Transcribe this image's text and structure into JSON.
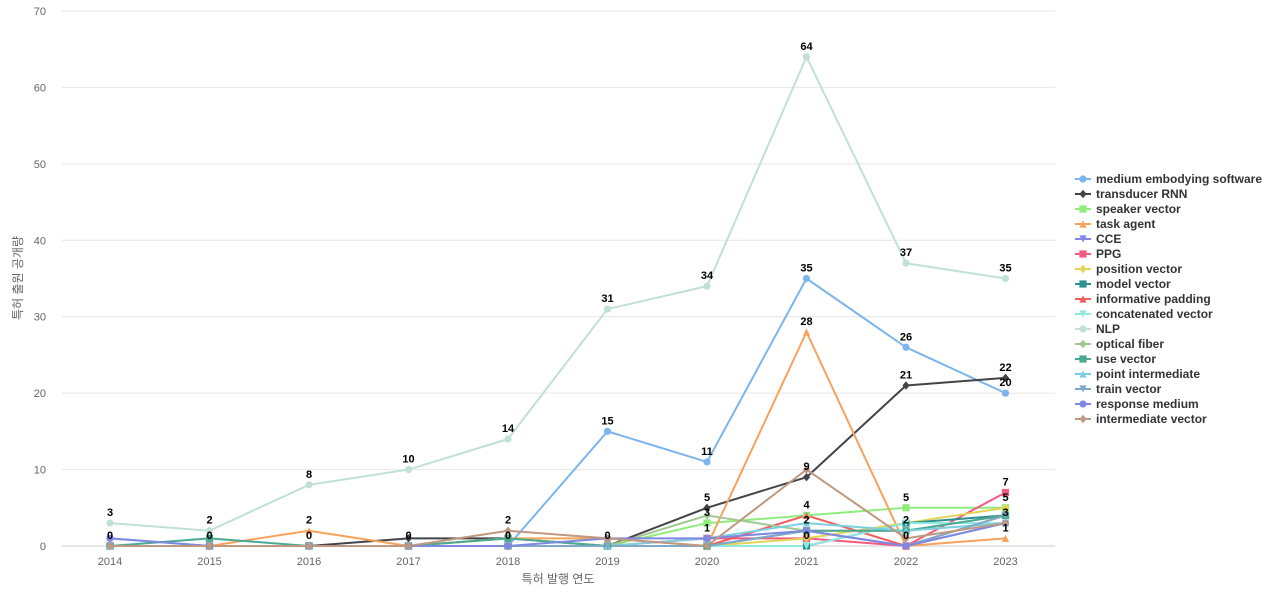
{
  "chart_data": {
    "type": "line",
    "title": "",
    "xlabel": "특허 발행 연도",
    "ylabel": "특허 출원 공개량",
    "x": [
      2014,
      2015,
      2016,
      2017,
      2018,
      2019,
      2020,
      2021,
      2022,
      2023
    ],
    "ylim": [
      0,
      70
    ],
    "yticks": [
      0,
      10,
      20,
      30,
      40,
      50,
      60,
      70
    ],
    "grid": "horizontal",
    "legend_position": "right",
    "series": [
      {
        "name": "medium embodying software",
        "color": "#7cb5ec",
        "marker": "circle",
        "values": [
          1,
          0,
          0,
          0,
          0,
          15,
          11,
          35,
          26,
          20
        ]
      },
      {
        "name": "transducer RNN",
        "color": "#434348",
        "marker": "diamond",
        "values": [
          0,
          0,
          0,
          1,
          1,
          0,
          5,
          9,
          21,
          22
        ]
      },
      {
        "name": "speaker vector",
        "color": "#90ed7d",
        "marker": "square",
        "values": [
          0,
          0,
          0,
          0,
          1,
          0,
          3,
          4,
          5,
          5
        ]
      },
      {
        "name": "task agent",
        "color": "#f7a35c",
        "marker": "triangle",
        "values": [
          0,
          0,
          2,
          0,
          1,
          1,
          0,
          28,
          0,
          1
        ]
      },
      {
        "name": "CCE",
        "color": "#8085e9",
        "marker": "triangle-down",
        "values": [
          0,
          0,
          0,
          0,
          0,
          0,
          0,
          2,
          0,
          3
        ]
      },
      {
        "name": "PPG",
        "color": "#f15c80",
        "marker": "square",
        "values": [
          0,
          0,
          0,
          0,
          0,
          0,
          1,
          1,
          0,
          7
        ]
      },
      {
        "name": "position vector",
        "color": "#e4d354",
        "marker": "diamond",
        "values": [
          0,
          0,
          0,
          0,
          1,
          0,
          0,
          1,
          3,
          5
        ]
      },
      {
        "name": "model vector",
        "color": "#2b908f",
        "marker": "square",
        "values": [
          0,
          0,
          0,
          0,
          0,
          0,
          0,
          0,
          3,
          4
        ]
      },
      {
        "name": "informative padding",
        "color": "#f45b5b",
        "marker": "triangle",
        "values": [
          0,
          0,
          0,
          0,
          0,
          0,
          0,
          4,
          0,
          4
        ]
      },
      {
        "name": "concatenated vector",
        "color": "#91e8e1",
        "marker": "triangle-down",
        "values": [
          0,
          0,
          0,
          0,
          0,
          0,
          0,
          0,
          3,
          3
        ]
      },
      {
        "name": "NLP",
        "color": "#c0e0d8",
        "marker": "circle",
        "values": [
          3,
          2,
          8,
          10,
          14,
          31,
          34,
          64,
          37,
          35
        ]
      },
      {
        "name": "optical fiber",
        "color": "#a0c890",
        "marker": "diamond",
        "values": [
          0,
          0,
          0,
          0,
          1,
          0,
          4,
          2,
          2,
          4
        ]
      },
      {
        "name": "use vector",
        "color": "#4aa893",
        "marker": "square",
        "values": [
          0,
          1,
          0,
          0,
          1,
          0,
          0,
          2,
          2,
          4
        ]
      },
      {
        "name": "point intermediate",
        "color": "#7ad0e0",
        "marker": "triangle",
        "values": [
          0,
          0,
          0,
          0,
          0,
          0,
          1,
          3,
          2,
          3
        ]
      },
      {
        "name": "train vector",
        "color": "#80a8c8",
        "marker": "triangle-down",
        "values": [
          0,
          0,
          0,
          0,
          0,
          0,
          0,
          2,
          0,
          4
        ]
      },
      {
        "name": "response medium",
        "color": "#7d88e0",
        "marker": "circle",
        "values": [
          1,
          0,
          0,
          0,
          0,
          1,
          1,
          2,
          0,
          3
        ]
      },
      {
        "name": "intermediate vector",
        "color": "#c09880",
        "marker": "diamond",
        "values": [
          0,
          0,
          0,
          0,
          2,
          1,
          0,
          10,
          1,
          3
        ]
      }
    ],
    "data_labels": [
      {
        "x": 2014,
        "text": "3",
        "value": 3
      },
      {
        "x": 2014,
        "text": "0",
        "value": 0
      },
      {
        "x": 2015,
        "text": "2",
        "value": 2
      },
      {
        "x": 2015,
        "text": "0",
        "value": 0
      },
      {
        "x": 2016,
        "text": "8",
        "value": 8
      },
      {
        "x": 2016,
        "text": "2",
        "value": 2
      },
      {
        "x": 2016,
        "text": "0",
        "value": 0
      },
      {
        "x": 2017,
        "text": "10",
        "value": 10
      },
      {
        "x": 2017,
        "text": "0",
        "value": 0
      },
      {
        "x": 2018,
        "text": "14",
        "value": 14
      },
      {
        "x": 2018,
        "text": "2",
        "value": 2
      },
      {
        "x": 2018,
        "text": "0",
        "value": 0
      },
      {
        "x": 2019,
        "text": "31",
        "value": 31
      },
      {
        "x": 2019,
        "text": "15",
        "value": 15
      },
      {
        "x": 2019,
        "text": "0",
        "value": 0
      },
      {
        "x": 2020,
        "text": "34",
        "value": 34
      },
      {
        "x": 2020,
        "text": "11",
        "value": 11
      },
      {
        "x": 2020,
        "text": "5",
        "value": 5
      },
      {
        "x": 2020,
        "text": "3",
        "value": 3
      },
      {
        "x": 2020,
        "text": "1",
        "value": 1
      },
      {
        "x": 2021,
        "text": "64",
        "value": 64
      },
      {
        "x": 2021,
        "text": "35",
        "value": 35
      },
      {
        "x": 2021,
        "text": "28",
        "value": 28
      },
      {
        "x": 2021,
        "text": "9",
        "value": 9
      },
      {
        "x": 2021,
        "text": "4",
        "value": 4
      },
      {
        "x": 2021,
        "text": "2",
        "value": 2
      },
      {
        "x": 2021,
        "text": "0",
        "value": 0
      },
      {
        "x": 2022,
        "text": "37",
        "value": 37
      },
      {
        "x": 2022,
        "text": "26",
        "value": 26
      },
      {
        "x": 2022,
        "text": "21",
        "value": 21
      },
      {
        "x": 2022,
        "text": "5",
        "value": 5
      },
      {
        "x": 2022,
        "text": "2",
        "value": 2
      },
      {
        "x": 2022,
        "text": "0",
        "value": 0
      },
      {
        "x": 2023,
        "text": "35",
        "value": 35
      },
      {
        "x": 2023,
        "text": "22",
        "value": 22
      },
      {
        "x": 2023,
        "text": "20",
        "value": 20
      },
      {
        "x": 2023,
        "text": "7",
        "value": 7
      },
      {
        "x": 2023,
        "text": "5",
        "value": 5
      },
      {
        "x": 2023,
        "text": "3",
        "value": 3
      },
      {
        "x": 2023,
        "text": "1",
        "value": 1
      }
    ]
  }
}
